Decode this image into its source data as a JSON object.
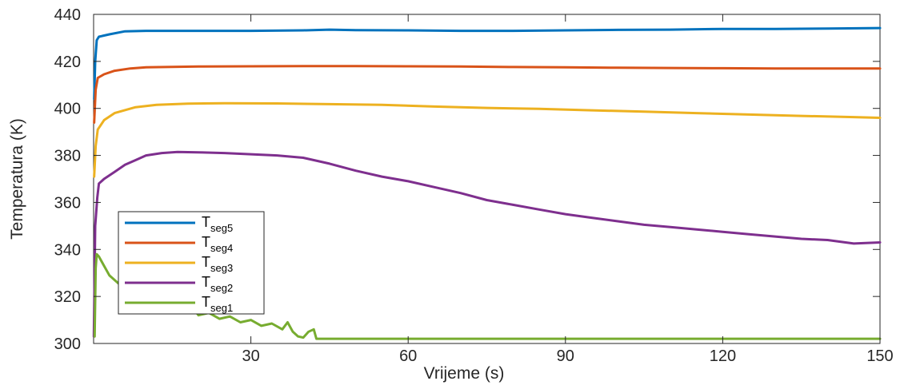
{
  "chart_data": {
    "type": "line",
    "title": "",
    "xlabel": "Vrijeme (s)",
    "ylabel": "Temperatura (K)",
    "xlim": [
      0,
      150
    ],
    "ylim": [
      300,
      440
    ],
    "xticks": [
      30,
      60,
      90,
      120,
      150
    ],
    "yticks": [
      300,
      320,
      340,
      360,
      380,
      400,
      420,
      440
    ],
    "grid": false,
    "legend_position": "bottom-left",
    "series": [
      {
        "name": "T_seg5",
        "label_main": "T",
        "label_sub": "seg5",
        "color": "#0072BD",
        "points": [
          [
            0.1,
            404
          ],
          [
            0.3,
            420
          ],
          [
            0.6,
            429
          ],
          [
            1,
            430.5
          ],
          [
            3,
            431.5
          ],
          [
            6,
            432.8
          ],
          [
            10,
            433
          ],
          [
            20,
            433
          ],
          [
            30,
            433
          ],
          [
            40,
            433.2
          ],
          [
            45,
            433.5
          ],
          [
            50,
            433.3
          ],
          [
            60,
            433.2
          ],
          [
            70,
            433
          ],
          [
            80,
            433
          ],
          [
            90,
            433.2
          ],
          [
            100,
            433.4
          ],
          [
            110,
            433.5
          ],
          [
            120,
            433.8
          ],
          [
            130,
            433.8
          ],
          [
            140,
            434
          ],
          [
            150,
            434.2
          ]
        ]
      },
      {
        "name": "T_seg4",
        "label_main": "T",
        "label_sub": "seg4",
        "color": "#D95319",
        "points": [
          [
            0.1,
            394
          ],
          [
            0.4,
            408
          ],
          [
            0.8,
            413
          ],
          [
            2,
            414.5
          ],
          [
            4,
            416
          ],
          [
            7,
            417
          ],
          [
            10,
            417.5
          ],
          [
            20,
            417.8
          ],
          [
            30,
            417.9
          ],
          [
            40,
            418
          ],
          [
            50,
            418
          ],
          [
            60,
            417.9
          ],
          [
            70,
            417.8
          ],
          [
            80,
            417.6
          ],
          [
            90,
            417.5
          ],
          [
            100,
            417.3
          ],
          [
            110,
            417.2
          ],
          [
            120,
            417.1
          ],
          [
            130,
            417
          ],
          [
            140,
            417
          ],
          [
            150,
            417
          ]
        ]
      },
      {
        "name": "T_seg3",
        "label_main": "T",
        "label_sub": "seg3",
        "color": "#EDB120",
        "points": [
          [
            0.1,
            371
          ],
          [
            0.4,
            384
          ],
          [
            0.8,
            391
          ],
          [
            2,
            395
          ],
          [
            4,
            398
          ],
          [
            8,
            400.5
          ],
          [
            12,
            401.5
          ],
          [
            18,
            402
          ],
          [
            25,
            402.2
          ],
          [
            35,
            402.1
          ],
          [
            45,
            401.8
          ],
          [
            55,
            401.5
          ],
          [
            65,
            400.8
          ],
          [
            75,
            400.2
          ],
          [
            85,
            399.8
          ],
          [
            95,
            399.2
          ],
          [
            105,
            398.6
          ],
          [
            115,
            398
          ],
          [
            125,
            397.4
          ],
          [
            135,
            396.8
          ],
          [
            145,
            396.3
          ],
          [
            150,
            396
          ]
        ]
      },
      {
        "name": "T_seg2",
        "label_main": "T",
        "label_sub": "seg2",
        "color": "#7E2F8E",
        "points": [
          [
            0.05,
            303
          ],
          [
            0.3,
            350
          ],
          [
            0.7,
            362
          ],
          [
            1,
            368
          ],
          [
            2,
            370
          ],
          [
            4,
            373
          ],
          [
            6,
            376
          ],
          [
            8,
            378
          ],
          [
            10,
            380
          ],
          [
            13,
            381
          ],
          [
            16,
            381.5
          ],
          [
            20,
            381.3
          ],
          [
            25,
            381
          ],
          [
            30,
            380.5
          ],
          [
            35,
            380
          ],
          [
            40,
            379
          ],
          [
            45,
            376.5
          ],
          [
            50,
            373.5
          ],
          [
            55,
            371
          ],
          [
            60,
            369
          ],
          [
            65,
            366.5
          ],
          [
            70,
            364
          ],
          [
            75,
            361
          ],
          [
            80,
            359
          ],
          [
            85,
            357
          ],
          [
            90,
            355
          ],
          [
            95,
            353.5
          ],
          [
            100,
            352
          ],
          [
            105,
            350.5
          ],
          [
            110,
            349.5
          ],
          [
            115,
            348.5
          ],
          [
            120,
            347.5
          ],
          [
            125,
            346.5
          ],
          [
            130,
            345.5
          ],
          [
            135,
            344.5
          ],
          [
            140,
            344
          ],
          [
            145,
            342.5
          ],
          [
            150,
            343
          ]
        ]
      },
      {
        "name": "T_seg1",
        "label_main": "T",
        "label_sub": "seg1",
        "color": "#77AC30",
        "points": [
          [
            0.2,
            303
          ],
          [
            0.4,
            332
          ],
          [
            0.6,
            338
          ],
          [
            1,
            337
          ],
          [
            2,
            333
          ],
          [
            3,
            329
          ],
          [
            5,
            325
          ],
          [
            6,
            327
          ],
          [
            8,
            323
          ],
          [
            10,
            320
          ],
          [
            13,
            318
          ],
          [
            15,
            316
          ],
          [
            17,
            314
          ],
          [
            19,
            315
          ],
          [
            20,
            312
          ],
          [
            22,
            313
          ],
          [
            24,
            310.5
          ],
          [
            26,
            311.5
          ],
          [
            28,
            309
          ],
          [
            30,
            310
          ],
          [
            32,
            307.5
          ],
          [
            34,
            308.5
          ],
          [
            36,
            306
          ],
          [
            37,
            309
          ],
          [
            38,
            305
          ],
          [
            39,
            303
          ],
          [
            40,
            302.5
          ],
          [
            41,
            305
          ],
          [
            42,
            306
          ],
          [
            42.5,
            302
          ],
          [
            45,
            302
          ],
          [
            60,
            302
          ],
          [
            90,
            302
          ],
          [
            120,
            302
          ],
          [
            150,
            302
          ]
        ]
      }
    ]
  }
}
